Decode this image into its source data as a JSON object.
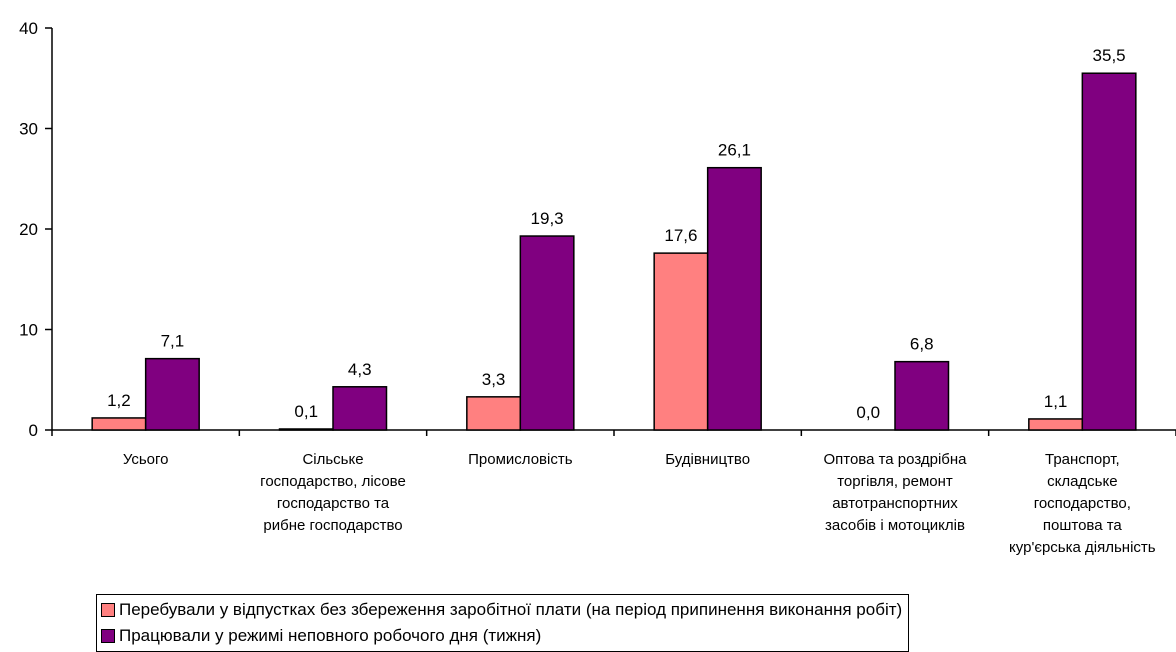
{
  "chart_data": {
    "type": "bar",
    "categories": [
      [
        "Усього"
      ],
      [
        "Сільське",
        "господарство, лісове",
        "господарство та",
        "рибне господарство"
      ],
      [
        "Промисловість"
      ],
      [
        "Будівництво"
      ],
      [
        "Оптова та роздрібна",
        "торгівля, ремонт",
        "автотранспортних",
        "засобів і мотоциклів"
      ],
      [
        "Транспорт,",
        "складське",
        "господарство,",
        "поштова та",
        "кур'єрська діяльність"
      ]
    ],
    "series": [
      {
        "name": "Перебували у відпустках без збереження заробітної плати (на період припинення виконання робіт)",
        "values": [
          1.2,
          0.1,
          3.3,
          17.6,
          0.0,
          1.1
        ],
        "labels": [
          "1,2",
          "0,1",
          "3,3",
          "17,6",
          "0,0",
          "1,1"
        ],
        "color": "#ff8080"
      },
      {
        "name": "Працювали у режимі неповного робочого дня (тижня)",
        "values": [
          7.1,
          4.3,
          19.3,
          26.1,
          6.8,
          35.5
        ],
        "labels": [
          "7,1",
          "4,3",
          "19,3",
          "26,1",
          "6,8",
          "35,5"
        ],
        "color": "#800080"
      }
    ],
    "ylim": [
      0,
      40
    ],
    "yticks": [
      0,
      10,
      20,
      30,
      40
    ],
    "grid": false,
    "legend_position": "bottom"
  }
}
